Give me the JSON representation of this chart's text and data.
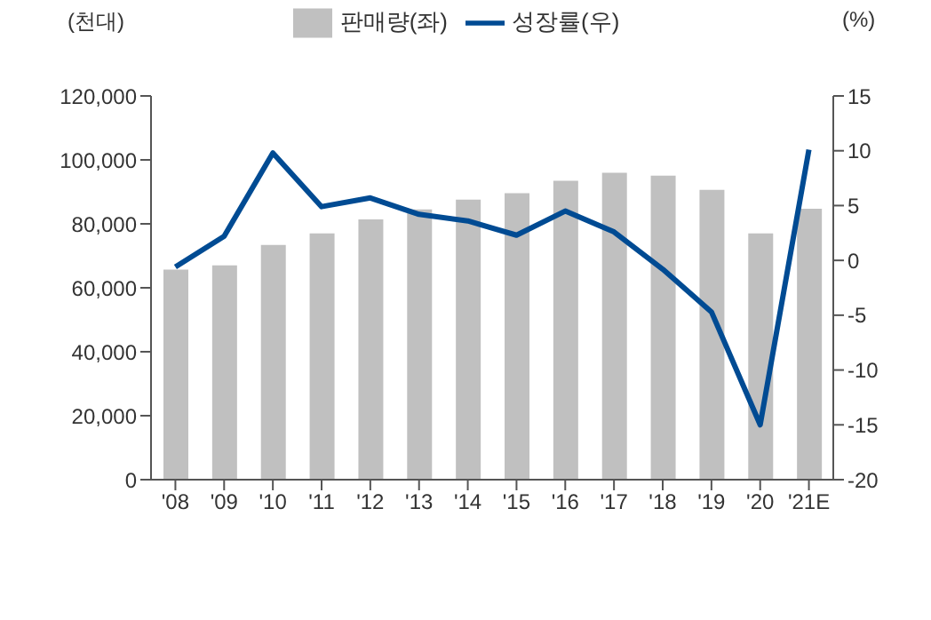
{
  "chart_data": {
    "type": "bar",
    "ylabel": "(천대)",
    "y2label": "(%)",
    "categories": [
      "'08",
      "'09",
      "'10",
      "'11",
      "'12",
      "'13",
      "'14",
      "'15",
      "'16",
      "'17",
      "'18",
      "'19",
      "'20",
      "'21E"
    ],
    "series": [
      {
        "name": "판매량(좌)",
        "color": "#c0c0c0",
        "values": [
          65700,
          67000,
          73400,
          77000,
          81400,
          84500,
          87600,
          89600,
          93500,
          96000,
          95100,
          90600,
          77000,
          84700
        ]
      },
      {
        "name": "성장률(우)",
        "type": "line",
        "axis": "y2",
        "color": "#004b93",
        "values": [
          -0.6,
          2.2,
          9.8,
          4.9,
          5.7,
          4.2,
          3.6,
          2.3,
          4.5,
          2.6,
          -0.8,
          -4.7,
          -15.0,
          10.1
        ]
      }
    ],
    "ylim": [
      0,
      120000
    ],
    "yticks": [
      0,
      {
        "value": 20000,
        "label": "20,000"
      },
      {
        "value": 40000,
        "label": "40,000"
      },
      {
        "value": 60000,
        "label": "60,000"
      },
      {
        "value": 80000,
        "label": "80,000"
      },
      {
        "value": 100000,
        "label": "100,000"
      },
      {
        "value": 120000,
        "label": "120,000"
      }
    ],
    "y2lim": [
      -20,
      15
    ],
    "y2ticks": [
      -20,
      -15,
      -10,
      -5,
      0,
      5,
      10,
      15
    ],
    "grid": false,
    "legend": "top",
    "marker": "none"
  }
}
